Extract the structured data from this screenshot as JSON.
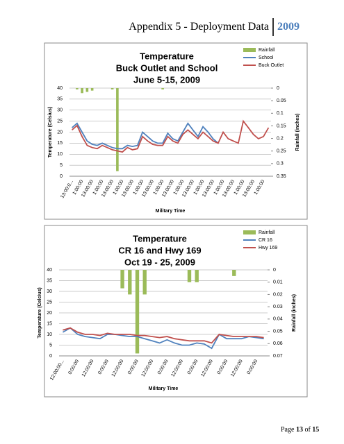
{
  "header": {
    "title": "Appendix 5 - Deployment Data",
    "year": "2009"
  },
  "chart_data": [
    {
      "type": "line",
      "title": [
        "Temperature",
        "Buck Outlet and School",
        "June 5-15, 2009"
      ],
      "y_label": "Temperature (Celsius)",
      "y2_label": "Rainfall (inches)",
      "x_label": "Military Time",
      "categories": [
        "13:00:0...",
        null,
        "1:00:00",
        null,
        "13:00:00",
        null,
        "1:00:00",
        null,
        "13:00:00",
        null,
        "1:00:00",
        null,
        "13:00:00",
        null,
        "1:00:00",
        null,
        "13:00:00",
        null,
        "1:00:00",
        null,
        "13:00:00",
        null,
        "1:00:00",
        null,
        "13:00:00",
        null,
        "1:00:00",
        null,
        "13:00:00",
        null,
        "1:00:00",
        null,
        "13:00:00",
        null,
        "1:00:00",
        null,
        "13:00:00",
        null,
        "1:00:00",
        null
      ],
      "series": [
        {
          "name": "Rainfall",
          "type": "bar",
          "axis": "y2",
          "color": "#9bbb59",
          "values": [
            0,
            0.005,
            0.02,
            0.015,
            0.01,
            0,
            0,
            0,
            0.005,
            0.33,
            0,
            0,
            0,
            0,
            0,
            0,
            0,
            0,
            0.005,
            0,
            0,
            0,
            0,
            0,
            0,
            0,
            0,
            0,
            0,
            0,
            0,
            0,
            0,
            0,
            0,
            0,
            0,
            0,
            0,
            0
          ]
        },
        {
          "name": "School",
          "color": "#4f81bd",
          "values": [
            22,
            24,
            20,
            16,
            14.5,
            14,
            15,
            14,
            13,
            12.5,
            12.5,
            14,
            13.5,
            14,
            20,
            18,
            16,
            15,
            15,
            19.5,
            17,
            16,
            20,
            24,
            21,
            18,
            22.5,
            20,
            17,
            15,
            null,
            null,
            null,
            null,
            null,
            null,
            null,
            null,
            null,
            null
          ]
        },
        {
          "name": "Buck Outlet",
          "color": "#c0504d",
          "values": [
            21,
            23,
            18,
            14,
            13,
            12.5,
            14,
            13,
            12,
            11.5,
            11,
            13,
            12,
            12.5,
            18,
            16,
            14.5,
            14,
            14,
            18,
            16,
            15,
            19,
            21,
            19,
            17,
            20,
            18,
            16,
            15,
            20,
            17,
            16,
            15,
            25,
            22,
            19,
            17,
            18,
            22
          ]
        }
      ],
      "ylim": [
        0,
        40
      ],
      "yticks": [
        0,
        5,
        10,
        15,
        20,
        25,
        30,
        35,
        40
      ],
      "y2lim": [
        0,
        0.35
      ],
      "y2ticks": [
        0,
        0.05,
        0.1,
        0.15,
        0.2,
        0.25,
        0.3,
        0.35
      ],
      "y2_inverted": true,
      "grid": true,
      "legend": "top-right"
    },
    {
      "type": "line",
      "title": [
        "Temperature",
        "CR 16 and Hwy 169",
        "Oct 19 - 25, 2009"
      ],
      "y_label": "Temperature (Celcius)",
      "y2_label": "Rainfall (inches)",
      "x_label": "Military Time",
      "categories": [
        "12:00:00...",
        null,
        "0:00:00",
        null,
        "12:00:00",
        null,
        "0:00:00",
        null,
        "12:00:00",
        null,
        "0:00:00",
        null,
        "12:00:00",
        null,
        "0:00:00",
        null,
        "12:00:00",
        null,
        "0:00:00",
        null,
        "12:00:00",
        null,
        "0:00:00",
        null,
        "12:00:00",
        null,
        "0:00:00",
        null
      ],
      "series": [
        {
          "name": "Rainfall",
          "type": "bar",
          "axis": "y2",
          "color": "#9bbb59",
          "values": [
            0,
            0,
            0,
            0,
            0,
            0,
            0,
            0,
            0.015,
            0.02,
            0.068,
            0.02,
            0,
            0,
            0,
            0,
            0,
            0.01,
            0.01,
            0,
            0,
            0,
            0,
            0.005,
            0,
            0,
            0,
            0
          ]
        },
        {
          "name": "CR 16",
          "color": "#4f81bd",
          "values": [
            11,
            13,
            10,
            9,
            8.5,
            8,
            10,
            10,
            9.5,
            9,
            9,
            8,
            7,
            6,
            7.5,
            6,
            5,
            5,
            6,
            5.5,
            3.5,
            10,
            8,
            8,
            8,
            9,
            8.5,
            8
          ]
        },
        {
          "name": "Hwy 169",
          "color": "#c0504d",
          "values": [
            12,
            13,
            11,
            10,
            10,
            9.5,
            10.5,
            10,
            10,
            10,
            9.5,
            9.5,
            9,
            8.5,
            9,
            8,
            7.5,
            7,
            7,
            7,
            6,
            10,
            9.5,
            9,
            9,
            9,
            9,
            8.5
          ]
        }
      ],
      "ylim": [
        0,
        40
      ],
      "yticks": [
        0,
        5,
        10,
        15,
        20,
        25,
        30,
        35,
        40
      ],
      "y2lim": [
        0,
        0.07
      ],
      "y2ticks": [
        0,
        0.01,
        0.02,
        0.03,
        0.04,
        0.05,
        0.06,
        0.07
      ],
      "y2_inverted": true,
      "grid": true,
      "legend": "top-right"
    }
  ],
  "footer": {
    "page": "Page",
    "current": "13",
    "of": "of",
    "total": "15"
  }
}
